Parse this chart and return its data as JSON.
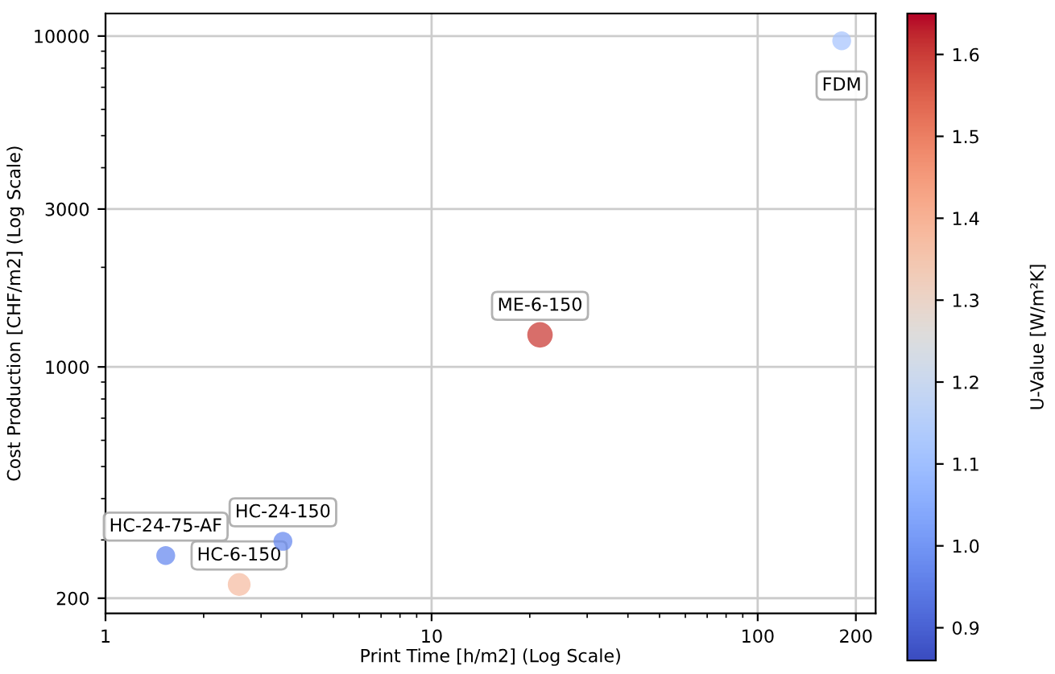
{
  "chart_data": {
    "type": "bubble",
    "xlabel": "Print Time [h/m2] (Log Scale)",
    "ylabel": "Cost Production [CHF/m2] (Log Scale)",
    "clabel": "U-Value [W/m²K]",
    "x": [
      181,
      21.5,
      1.53,
      3.5,
      2.57
    ],
    "values": [
      9670,
      1250,
      269,
      297,
      220
    ],
    "cvalues": [
      1.12,
      1.6,
      0.98,
      0.98,
      1.37
    ],
    "sizes": [
      0.55,
      1,
      0.55,
      0.55,
      0.8
    ],
    "clim": [
      0.86,
      1.65
    ],
    "cticks": [
      0.9,
      {
        "value": 1,
        "label": "1.0"
      },
      1.1,
      1.2,
      1.3,
      1.4,
      1.5,
      1.6
    ],
    "log": "xy",
    "xlim": [
      1,
      230
    ],
    "xticks": [
      1,
      10,
      100,
      200
    ],
    "ylim": [
      180,
      11700
    ],
    "yticks": [
      200,
      1000,
      3000,
      10000
    ],
    "grid": true,
    "annotations": [
      {
        "text": "FDM",
        "x": 181,
        "y": 9670
      },
      {
        "text": "ME-6-150",
        "x": 21.5,
        "y": 1250
      },
      {
        "text": "HC-24-75-AF",
        "x": 1.53,
        "y": 269
      },
      {
        "text": "HC-24-150",
        "x": 3.5,
        "y": 297
      },
      {
        "text": "HC-6-150",
        "x": 2.57,
        "y": 220
      }
    ]
  }
}
